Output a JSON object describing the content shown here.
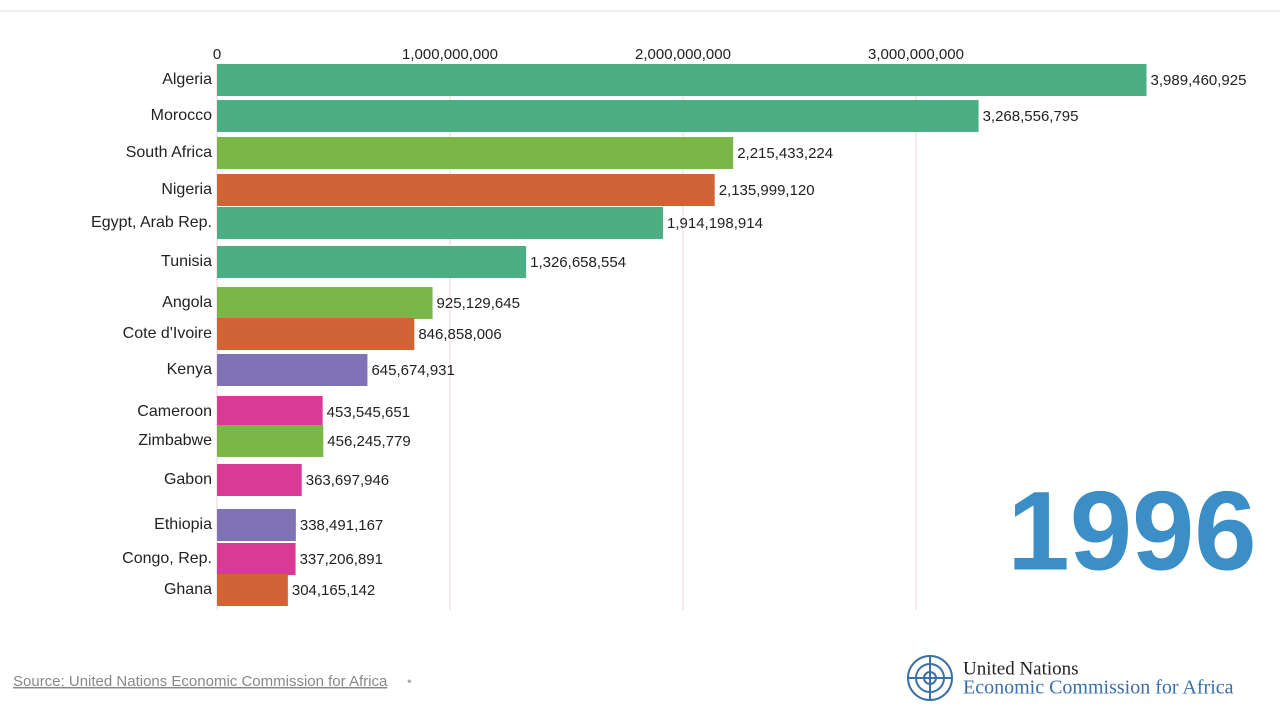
{
  "chart_data": {
    "type": "bar",
    "orientation": "horizontal",
    "categories": [
      "Algeria",
      "Morocco",
      "South Africa",
      "Nigeria",
      "Egypt, Arab Rep.",
      "Tunisia",
      "Angola",
      "Cote d'Ivoire",
      "Kenya",
      "Cameroon",
      "Zimbabwe",
      "Gabon",
      "Ethiopia",
      "Congo, Rep.",
      "Ghana"
    ],
    "values": [
      3989460925,
      3268556795,
      2215433224,
      2135999120,
      1914198914,
      1326658554,
      925129645,
      846858006,
      645674931,
      453545651,
      456245779,
      363697946,
      338491167,
      337206891,
      304165142
    ],
    "value_labels": [
      "3,989,460,925",
      "3,268,556,795",
      "2,215,433,224",
      "2,135,999,120",
      "1,914,198,914",
      "1,326,658,554",
      "925,129,645",
      "846,858,006",
      "645,674,931",
      "453,545,651",
      "456,245,779",
      "363,697,946",
      "338,491,167",
      "337,206,891",
      "304,165,142"
    ],
    "colors": [
      "#4caf83",
      "#4caf83",
      "#7ab648",
      "#d06436",
      "#4caf83",
      "#4caf83",
      "#7ab648",
      "#d06436",
      "#8073b5",
      "#d93a95",
      "#7ab648",
      "#d93a95",
      "#8073b5",
      "#d93a95",
      "#d06436"
    ],
    "xlim": [
      0,
      4000000000
    ],
    "xticks": [
      0,
      {
        "value": 1000000000,
        "label": "1,000,000,000"
      },
      {
        "value": 2000000000,
        "label": "2,000,000,000"
      },
      {
        "value": 3000000000,
        "label": "3,000,000,000"
      }
    ],
    "grid": true,
    "year_label": "1996"
  },
  "footer": {
    "source": "Source: United Nations Economic Commission for Africa",
    "separator": "•",
    "logo_line1": "United Nations",
    "logo_line2": "Economic Commission for Africa"
  }
}
